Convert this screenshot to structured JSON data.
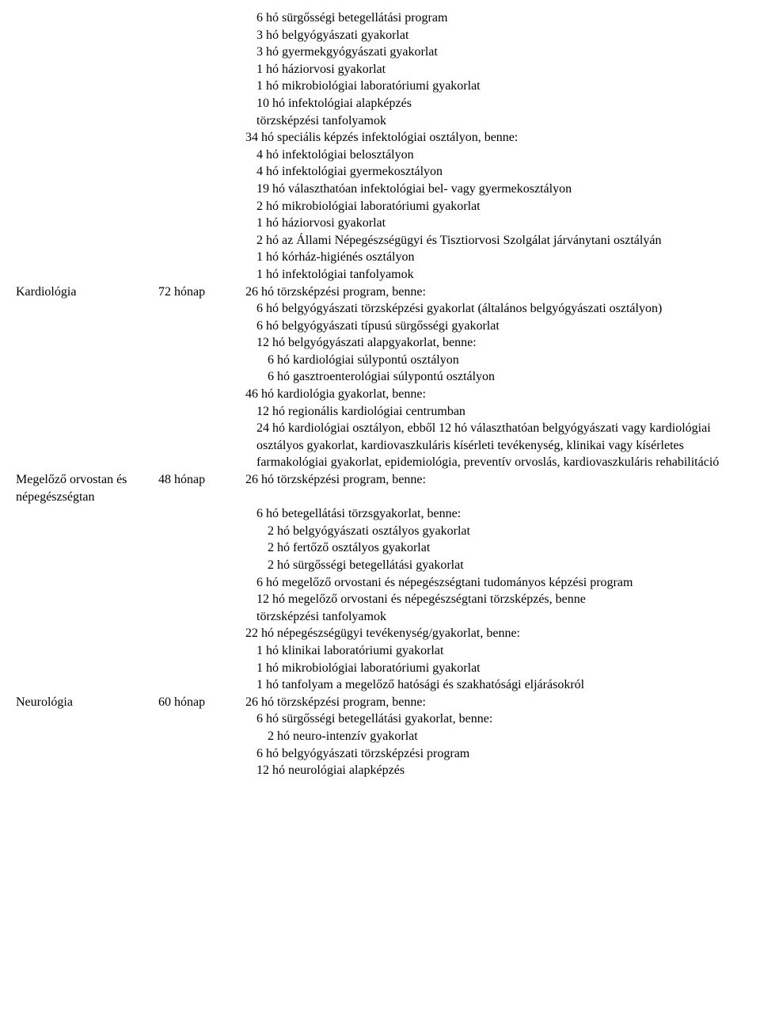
{
  "rows": [
    {
      "c1": "",
      "c2": "",
      "lines": [
        {
          "ind": 1,
          "text": "6 hó sürgősségi betegellátási program"
        },
        {
          "ind": 1,
          "text": "3 hó belgyógyászati gyakorlat"
        },
        {
          "ind": 1,
          "text": "3 hó gyermekgyógyászati gyakorlat"
        },
        {
          "ind": 1,
          "text": "1 hó háziorvosi gyakorlat"
        },
        {
          "ind": 1,
          "text": "1 hó mikrobiológiai laboratóriumi gyakorlat"
        },
        {
          "ind": 1,
          "text": "10 hó infektológiai alapképzés"
        },
        {
          "ind": 1,
          "text": "törzsképzési tanfolyamok"
        },
        {
          "ind": 0,
          "text": "34 hó speciális képzés infektológiai osztályon, benne:"
        },
        {
          "ind": 1,
          "text": "4 hó infektológiai belosztályon"
        },
        {
          "ind": 1,
          "text": "4 hó infektológiai gyermekosztályon"
        },
        {
          "ind": 1,
          "text": "19 hó választhatóan infektológiai bel- vagy gyermekosztályon"
        },
        {
          "ind": 1,
          "text": "2 hó mikrobiológiai laboratóriumi gyakorlat"
        },
        {
          "ind": 1,
          "text": "1 hó háziorvosi gyakorlat"
        },
        {
          "ind": 1,
          "text": "2 hó az Állami Népegészségügyi és Tisztiorvosi Szolgálat járványtani osztályán"
        },
        {
          "ind": 1,
          "text": "1 hó kórház-higiénés osztályon"
        },
        {
          "ind": 1,
          "text": "1 hó infektológiai tanfolyamok"
        }
      ]
    },
    {
      "c1": "Kardiológia",
      "c2": "72 hónap",
      "lines": [
        {
          "ind": 0,
          "text": "26 hó törzsképzési program, benne:"
        },
        {
          "ind": 1,
          "text": "6 hó belgyógyászati törzsképzési gyakorlat (általános belgyógyászati osztályon)"
        },
        {
          "ind": 1,
          "text": "6 hó belgyógyászati típusú sürgősségi gyakorlat"
        },
        {
          "ind": 1,
          "text": "12 hó belgyógyászati alapgyakorlat, benne:"
        },
        {
          "ind": 2,
          "text": "6 hó kardiológiai súlypontú osztályon"
        },
        {
          "ind": 2,
          "text": "6 hó gasztroenterológiai súlypontú osztályon"
        },
        {
          "ind": 0,
          "text": "46 hó kardiológia gyakorlat, benne:"
        },
        {
          "ind": 1,
          "text": "12 hó regionális kardiológiai centrumban"
        },
        {
          "ind": 1,
          "text": "24 hó kardiológiai osztályon, ebből 12 hó választhatóan belgyógyászati vagy kardiológiai osztályos gyakorlat, kardiovaszkuláris kísérleti tevékenység, klinikai vagy kísérletes farmakológiai gyakorlat, epidemiológia, preventív orvoslás, kardiovaszkuláris rehabilitáció"
        }
      ]
    },
    {
      "c1": "Megelőző orvostan és népegészségtan",
      "c2": "48 hónap",
      "lines": [
        {
          "ind": 0,
          "text": "26 hó törzsképzési program, benne:"
        },
        {
          "ind": 1,
          "text": "6 hó betegellátási törzsgyakorlat, benne:"
        },
        {
          "ind": 2,
          "text": "2 hó belgyógyászati osztályos gyakorlat"
        },
        {
          "ind": 2,
          "text": "2 hó fertőző osztályos gyakorlat"
        },
        {
          "ind": 2,
          "text": "2 hó sürgősségi betegellátási gyakorlat"
        },
        {
          "ind": 1,
          "text": "6 hó megelőző orvostani és népegészségtani tudományos képzési program"
        },
        {
          "ind": 1,
          "text": "12 hó megelőző orvostani és népegészségtani törzsképzés, benne"
        },
        {
          "ind": 1,
          "text": "törzsképzési tanfolyamok"
        },
        {
          "ind": 0,
          "text": "22 hó népegészségügyi tevékenység/gyakorlat, benne:"
        },
        {
          "ind": 1,
          "text": "1 hó klinikai laboratóriumi gyakorlat"
        },
        {
          "ind": 1,
          "text": "1 hó mikrobiológiai laboratóriumi gyakorlat"
        },
        {
          "ind": 1,
          "text": "1 hó tanfolyam a megelőző hatósági és szakhatósági eljárásokról"
        }
      ]
    },
    {
      "c1": "Neurológia",
      "c2": "60 hónap",
      "lines": [
        {
          "ind": 0,
          "text": "26 hó törzsképzési program, benne:"
        },
        {
          "ind": 1,
          "text": "6 hó sürgősségi betegellátási gyakorlat, benne:"
        },
        {
          "ind": 2,
          "text": "2 hó neuro-intenzív gyakorlat"
        },
        {
          "ind": 1,
          "text": "6 hó belgyógyászati törzsképzési program"
        },
        {
          "ind": 1,
          "text": "12 hó neurológiai alapképzés"
        }
      ]
    }
  ]
}
